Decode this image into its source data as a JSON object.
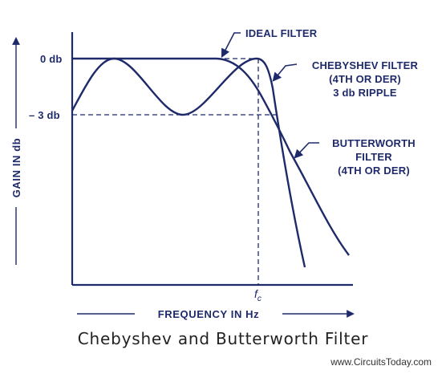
{
  "diagram": {
    "labels": {
      "ideal_filter": "IDEAL FILTER",
      "chebyshev_line1": "CHEBYSHEV FILTER",
      "chebyshev_line2": "(4TH OR DER)",
      "chebyshev_line3": "3 db RIPPLE",
      "butterworth_line1": "BUTTERWORTH",
      "butterworth_line2": "FILTER",
      "butterworth_line3": "(4TH OR DER)"
    },
    "y_axis": {
      "label": "GAIN IN db",
      "tick_0db": "0 db",
      "tick_minus3db": "– 3 db"
    },
    "x_axis": {
      "label": "FREQUENCY IN Hz",
      "cutoff_main": "f",
      "cutoff_sub": "c"
    },
    "colors": {
      "ink": "#1f2a6b"
    }
  },
  "caption": "Chebyshev and Butterworth Filter",
  "watermark": "www.CircuitsToday.com"
}
